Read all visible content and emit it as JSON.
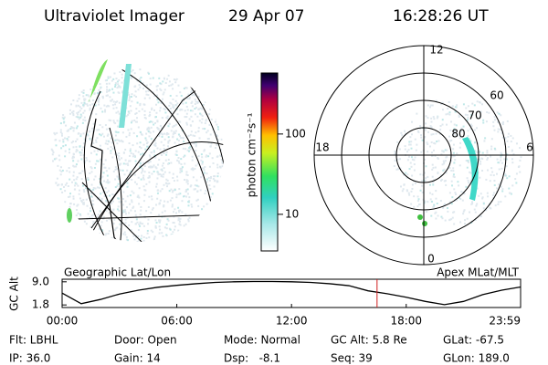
{
  "header": {
    "title": "Ultraviolet Imager",
    "date": "29 Apr 07",
    "time": "16:28:26 UT"
  },
  "geo_panel": {
    "label": "Geographic Lat/Lon"
  },
  "colorbar": {
    "label": "photon cm⁻²s⁻¹",
    "log": true,
    "lim": [
      3.5,
      575
    ],
    "ticks": [
      10,
      100
    ]
  },
  "polar_panel": {
    "label": "Apex MLat/MLT",
    "mlt_labels": [
      "12",
      "18",
      "6",
      "0"
    ],
    "mlat_labels": [
      "80",
      "70",
      "60"
    ]
  },
  "orbit": {
    "ylabel": "GC Alt",
    "ylim": [
      1.0,
      9.8
    ],
    "yticks": [
      {
        "value": 9.0,
        "label": "9.0"
      },
      1.8
    ],
    "xlim": [
      0,
      23.983
    ],
    "xticks": [
      {
        "value": 0,
        "label": "00:00"
      },
      {
        "value": 6,
        "label": "06:00"
      },
      {
        "value": 12,
        "label": "12:00"
      },
      {
        "value": 18,
        "label": "18:00"
      },
      {
        "value": 23.983,
        "label": "23:59"
      }
    ],
    "x": [
      0,
      1,
      2,
      3,
      4,
      5,
      6,
      7,
      8,
      9,
      10,
      11,
      12,
      13,
      14,
      15,
      16,
      17,
      18,
      19,
      20,
      21,
      22,
      23,
      23.983
    ],
    "values": [
      5.5,
      2.2,
      3.5,
      5.2,
      6.4,
      7.3,
      7.9,
      8.4,
      8.8,
      9.0,
      9.1,
      9.1,
      9.0,
      8.8,
      8.4,
      7.8,
      6.2,
      5.3,
      4.2,
      2.9,
      1.9,
      2.9,
      5.0,
      6.4,
      7.4
    ],
    "color": "#000000",
    "marker_time": 16.474,
    "marker_color": "#d02020"
  },
  "footer": {
    "rows": [
      [
        "Flt: LBHL",
        "Door: Open",
        "Mode: Normal",
        "GC Alt: 5.8 Re",
        "GLat: -67.5"
      ],
      [
        "IP: 36.0",
        "Gain: 14",
        "Dsp:   -8.1",
        "Seq: 39",
        "GLon: 189.0"
      ]
    ]
  }
}
